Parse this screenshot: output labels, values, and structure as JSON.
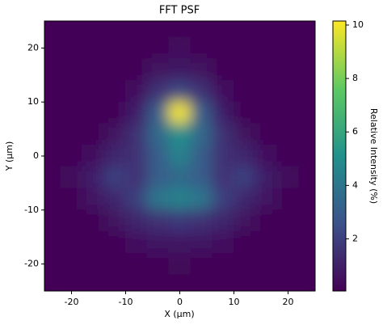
{
  "chart_data": {
    "type": "heatmap",
    "title": "FFT PSF",
    "x_label": "X (µm)",
    "y_label": "Y (µm)",
    "colorbar_label": "Relative Intensity (%)",
    "colormap": "viridis",
    "xlim": [
      -25,
      25
    ],
    "ylim": [
      -25,
      25
    ],
    "xticks": [
      -20,
      -10,
      0,
      10,
      20
    ],
    "yticks": [
      -20,
      -10,
      0,
      10,
      20
    ],
    "zlim": [
      0.05,
      10.15
    ],
    "zticks": [
      2,
      4,
      6,
      8,
      10
    ],
    "x": [
      -24,
      -20,
      -16,
      -12,
      -8,
      -4,
      0,
      4,
      8,
      12,
      16,
      20,
      24
    ],
    "y": [
      24,
      20,
      16,
      12,
      8,
      4,
      0,
      -4,
      -8,
      -12,
      -16,
      -20,
      -24
    ],
    "z": [
      [
        0.2,
        0.2,
        0.2,
        0.2,
        0.2,
        0.2,
        0.2,
        0.2,
        0.2,
        0.2,
        0.2,
        0.2,
        0.2
      ],
      [
        0.2,
        0.2,
        0.2,
        0.2,
        0.2,
        0.2,
        0.4,
        0.2,
        0.2,
        0.2,
        0.2,
        0.2,
        0.2
      ],
      [
        0.2,
        0.2,
        0.2,
        0.2,
        0.2,
        0.6,
        0.8,
        0.6,
        0.2,
        0.2,
        0.2,
        0.2,
        0.2
      ],
      [
        0.2,
        0.2,
        0.2,
        0.2,
        0.5,
        1.5,
        2.2,
        1.5,
        0.5,
        0.2,
        0.2,
        0.2,
        0.2
      ],
      [
        0.2,
        0.2,
        0.2,
        0.2,
        1,
        3,
        10,
        3,
        1,
        0.2,
        0.2,
        0.2,
        0.2
      ],
      [
        0.2,
        0.2,
        0.2,
        0.6,
        1.5,
        3.5,
        5,
        3.5,
        1.5,
        0.6,
        0.2,
        0.2,
        0.2
      ],
      [
        0.2,
        0.2,
        0.5,
        1.2,
        1.5,
        3,
        4.5,
        3,
        1.5,
        1.2,
        0.5,
        0.2,
        0.2
      ],
      [
        0.2,
        0.4,
        1,
        2,
        1.5,
        3,
        3.5,
        3,
        1.5,
        2,
        1,
        0.4,
        0.2
      ],
      [
        0.2,
        0.2,
        0.7,
        1.2,
        2,
        4,
        4.5,
        4,
        2,
        1.2,
        0.7,
        0.2,
        0.2
      ],
      [
        0.2,
        0.2,
        0.2,
        0.6,
        1.2,
        1.5,
        1.8,
        1.5,
        1.2,
        0.6,
        0.2,
        0.2,
        0.2
      ],
      [
        0.2,
        0.2,
        0.2,
        0.2,
        0.5,
        0.8,
        0.8,
        0.8,
        0.5,
        0.2,
        0.2,
        0.2,
        0.2
      ],
      [
        0.2,
        0.2,
        0.2,
        0.2,
        0.2,
        0.2,
        0.3,
        0.2,
        0.2,
        0.2,
        0.2,
        0.2,
        0.2
      ],
      [
        0.2,
        0.2,
        0.2,
        0.2,
        0.2,
        0.2,
        0.2,
        0.2,
        0.2,
        0.2,
        0.2,
        0.2,
        0.2
      ]
    ]
  }
}
